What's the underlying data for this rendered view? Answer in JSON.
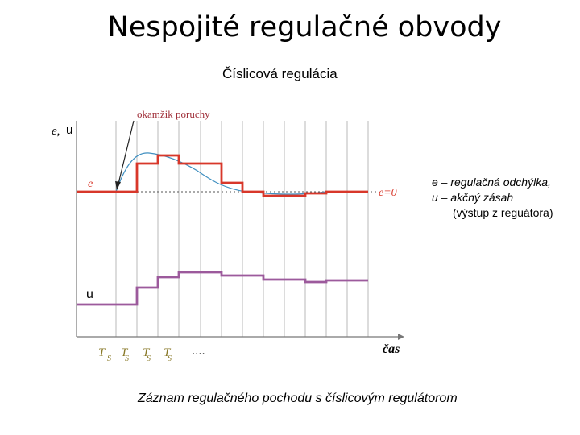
{
  "title": "Nespojité regulačné obvody",
  "subtitle": "Číslicová regulácia",
  "diagram": {
    "fault_label": "okamžik poruchy",
    "y_axis_label_e": "e,",
    "y_axis_label_u": "u",
    "e_curve_label": "e",
    "e_zero_label": "e=0",
    "u_curve_label": "u",
    "x_axis_label": "čas",
    "sample_labels": [
      "T",
      "T",
      "T",
      "T"
    ],
    "sample_subscript": "S",
    "ellipsis": "....",
    "colors": {
      "e_signal": "#d8372a",
      "u_signal": "#9c5a9c",
      "continuous_curve": "#3f8fc0",
      "fault_label": "#a0303a",
      "sample_label": "#8a7a2a",
      "grid": "#b8b8b8"
    }
  },
  "legend": {
    "line1": "e –   regulačná odchýlka,",
    "line2": "u – akčný zásah",
    "line3": "(výstup z reguátora)"
  },
  "caption": "Záznam regulačného pochodu s číslicovým regulátorom"
}
